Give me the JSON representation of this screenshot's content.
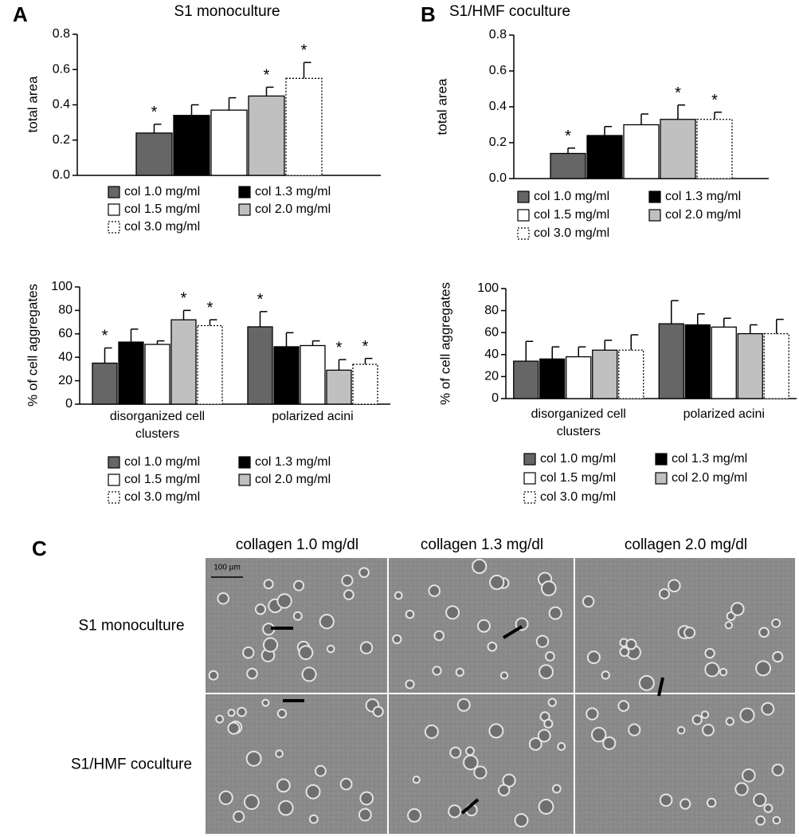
{
  "panel_labels": [
    "A",
    "B",
    "C"
  ],
  "chart_data": [
    {
      "type": "bar",
      "title": "S1 monoculture",
      "y_label": "total area",
      "categories": [
        null
      ],
      "ylim": [
        0,
        0.8
      ],
      "yticks": [
        {
          "value": 0,
          "label": "0.0"
        },
        0.2,
        0.4,
        0.6,
        0.8
      ],
      "legend": "below",
      "series": [
        {
          "name": "col 1.0 mg/ml",
          "color": "#666666",
          "values": [
            0.24
          ],
          "errors": [
            0.05
          ],
          "annotations": [
            "*"
          ]
        },
        {
          "name": "col 1.3 mg/ml",
          "color": "#000000",
          "values": [
            0.34
          ],
          "errors": [
            0.06
          ],
          "annotations": [
            null
          ]
        },
        {
          "name": "col 1.5 mg/ml",
          "color": "#ffffff",
          "values": [
            0.37
          ],
          "errors": [
            0.07
          ],
          "annotations": [
            null
          ]
        },
        {
          "name": "col 2.0 mg/ml",
          "color": "#c0c0c0",
          "values": [
            0.45
          ],
          "errors": [
            0.05
          ],
          "annotations": [
            "*"
          ]
        },
        {
          "name": "col 3.0 mg/ml",
          "color": "#ffffff",
          "dashed": true,
          "values": [
            0.55
          ],
          "errors": [
            0.09
          ],
          "annotations": [
            "*"
          ]
        }
      ]
    },
    {
      "type": "bar",
      "title": "S1/HMF coculture",
      "y_label": "total area",
      "categories": [
        null
      ],
      "ylim": [
        0,
        0.8
      ],
      "yticks": [
        {
          "value": 0,
          "label": "0.0"
        },
        0.2,
        0.4,
        0.6,
        0.8
      ],
      "legend": "below",
      "series": [
        {
          "name": "col 1.0 mg/ml",
          "color": "#666666",
          "values": [
            0.14
          ],
          "errors": [
            0.03
          ],
          "annotations": [
            "*"
          ]
        },
        {
          "name": "col 1.3 mg/ml",
          "color": "#000000",
          "values": [
            0.24
          ],
          "errors": [
            0.05
          ],
          "annotations": [
            null
          ]
        },
        {
          "name": "col 1.5 mg/ml",
          "color": "#ffffff",
          "values": [
            0.3
          ],
          "errors": [
            0.06
          ],
          "annotations": [
            null
          ]
        },
        {
          "name": "col 2.0 mg/ml",
          "color": "#c0c0c0",
          "values": [
            0.33
          ],
          "errors": [
            0.08
          ],
          "annotations": [
            "*"
          ]
        },
        {
          "name": "col 3.0 mg/ml",
          "color": "#ffffff",
          "dashed": true,
          "values": [
            0.33
          ],
          "errors": [
            0.04
          ],
          "annotations": [
            "*"
          ]
        }
      ]
    },
    {
      "type": "bar",
      "y_label": "% of cell aggregates",
      "categories": [
        "disorganized cell clusters",
        "polarized acini"
      ],
      "ylim": [
        0,
        100
      ],
      "yticks": [
        0,
        20,
        40,
        60,
        80,
        100
      ],
      "legend": "below",
      "series": [
        {
          "name": "col 1.0 mg/ml",
          "color": "#666666",
          "values": [
            35,
            66
          ],
          "errors": [
            13,
            13
          ],
          "annotations": [
            "*",
            "*"
          ]
        },
        {
          "name": "col 1.3 mg/ml",
          "color": "#000000",
          "values": [
            53,
            49
          ],
          "errors": [
            11,
            12
          ],
          "annotations": [
            null,
            null
          ]
        },
        {
          "name": "col 1.5 mg/ml",
          "color": "#ffffff",
          "values": [
            51,
            50
          ],
          "errors": [
            3,
            4
          ],
          "annotations": [
            null,
            null
          ]
        },
        {
          "name": "col 2.0 mg/ml",
          "color": "#c0c0c0",
          "values": [
            72,
            29
          ],
          "errors": [
            8,
            9
          ],
          "annotations": [
            "*",
            "*"
          ]
        },
        {
          "name": "col 3.0 mg/ml",
          "color": "#ffffff",
          "dashed": true,
          "values": [
            67,
            34
          ],
          "errors": [
            5,
            5
          ],
          "annotations": [
            "*",
            "*"
          ]
        }
      ]
    },
    {
      "type": "bar",
      "y_label": "% of cell aggregates",
      "categories": [
        "disorganized cell clusters",
        "polarized acini"
      ],
      "ylim": [
        0,
        100
      ],
      "yticks": [
        0,
        20,
        40,
        60,
        80,
        100
      ],
      "legend": "below",
      "series": [
        {
          "name": "col 1.0 mg/ml",
          "color": "#666666",
          "values": [
            34,
            68
          ],
          "errors": [
            18,
            21
          ],
          "annotations": [
            null,
            null
          ]
        },
        {
          "name": "col 1.3 mg/ml",
          "color": "#000000",
          "values": [
            36,
            67
          ],
          "errors": [
            11,
            10
          ],
          "annotations": [
            null,
            null
          ]
        },
        {
          "name": "col 1.5 mg/ml",
          "color": "#ffffff",
          "values": [
            38,
            65
          ],
          "errors": [
            9,
            8
          ],
          "annotations": [
            null,
            null
          ]
        },
        {
          "name": "col 2.0 mg/ml",
          "color": "#c0c0c0",
          "values": [
            44,
            59
          ],
          "errors": [
            9,
            8
          ],
          "annotations": [
            null,
            null
          ]
        },
        {
          "name": "col 3.0 mg/ml",
          "color": "#ffffff",
          "dashed": true,
          "values": [
            44,
            59
          ],
          "errors": [
            14,
            13
          ],
          "annotations": [
            null,
            null
          ]
        }
      ]
    }
  ],
  "micrographs": {
    "columns": [
      "collagen 1.0 mg/dl",
      "collagen 1.3 mg/dl",
      "collagen 2.0 mg/dl"
    ],
    "rows": [
      "S1 monoculture",
      "S1/HMF coculture"
    ],
    "scale_bar": "100 µm"
  }
}
